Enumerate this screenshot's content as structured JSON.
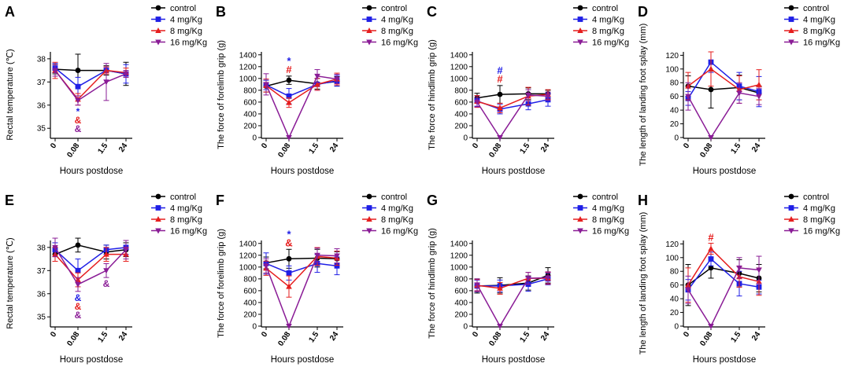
{
  "figure": {
    "x_categories": [
      "0",
      "0.08",
      "1.5",
      "24"
    ],
    "xlabel": "Hours postdose",
    "legend": [
      {
        "name": "control",
        "color": "#000000",
        "marker": "circle"
      },
      {
        "name": "4  mg/Kg",
        "color": "#1f1fe6",
        "marker": "square"
      },
      {
        "name": "8  mg/Kg",
        "color": "#e61e1e",
        "marker": "triangle-up"
      },
      {
        "name": "16 mg/Kg",
        "color": "#8a1c96",
        "marker": "triangle-down"
      }
    ]
  },
  "chart_data": [
    {
      "panel": "A",
      "type": "line",
      "ylabel": "Rectal temperature (℃)",
      "xlabel": "Hours postdose",
      "categories": [
        "0",
        "0.08",
        "1.5",
        "24"
      ],
      "ylim": [
        34.6,
        38.3
      ],
      "yticks": [
        35,
        36,
        37,
        38
      ],
      "series": [
        {
          "name": "control",
          "values": [
            37.55,
            37.5,
            37.5,
            37.35
          ],
          "errors": [
            0.2,
            0.7,
            0.2,
            0.5
          ]
        },
        {
          "name": "4  mg/Kg",
          "values": [
            37.6,
            36.8,
            37.5,
            37.35
          ],
          "errors": [
            0.2,
            0.4,
            0.15,
            0.4
          ]
        },
        {
          "name": "8  mg/Kg",
          "values": [
            37.5,
            36.25,
            37.5,
            37.4
          ],
          "errors": [
            0.35,
            0.25,
            0.15,
            0.2
          ]
        },
        {
          "name": "16 mg/Kg",
          "values": [
            37.5,
            36.2,
            37.0,
            37.35
          ],
          "errors": [
            0.25,
            0.2,
            0.8,
            0.15
          ]
        }
      ],
      "annotations": [
        {
          "x": "0.08",
          "lines": [
            {
              "text": "*",
              "series": "4  mg/Kg"
            },
            {
              "text": "&",
              "series": "8  mg/Kg"
            },
            {
              "text": "&",
              "series": "16 mg/Kg"
            }
          ]
        }
      ]
    },
    {
      "panel": "B",
      "type": "line",
      "ylabel": "The force of forelimb grip (g)",
      "xlabel": "Hours postdose",
      "categories": [
        "0",
        "0.08",
        "1.5",
        "24"
      ],
      "ylim": [
        0,
        1450
      ],
      "yticks": [
        0,
        200,
        400,
        600,
        800,
        1000,
        1200,
        1400
      ],
      "series": [
        {
          "name": "control",
          "values": [
            870,
            970,
            910,
            950
          ],
          "errors": [
            100,
            70,
            90,
            80
          ]
        },
        {
          "name": "4  mg/Kg",
          "values": [
            890,
            700,
            900,
            960
          ],
          "errors": [
            80,
            130,
            100,
            90
          ]
        },
        {
          "name": "8  mg/Kg",
          "values": [
            880,
            590,
            900,
            990
          ],
          "errors": [
            110,
            80,
            100,
            100
          ]
        },
        {
          "name": "16 mg/Kg",
          "values": [
            900,
            0,
            1040,
            990
          ],
          "errors": [
            180,
            0,
            110,
            80
          ]
        }
      ],
      "annotations": [
        {
          "x": "0.08",
          "lines": [
            {
              "text": "*",
              "series": "4  mg/Kg"
            },
            {
              "text": "#",
              "series": "8  mg/Kg"
            }
          ]
        }
      ]
    },
    {
      "panel": "C",
      "type": "line",
      "ylabel": "The force of hindlimb grip (g)",
      "xlabel": "Hours postdose",
      "categories": [
        "0",
        "0.08",
        "1.5",
        "24"
      ],
      "ylim": [
        0,
        1450
      ],
      "yticks": [
        0,
        200,
        400,
        600,
        800,
        1000,
        1200,
        1400
      ],
      "series": [
        {
          "name": "control",
          "values": [
            670,
            730,
            740,
            740
          ],
          "errors": [
            80,
            150,
            100,
            60
          ]
        },
        {
          "name": "4  mg/Kg",
          "values": [
            620,
            480,
            570,
            640
          ],
          "errors": [
            90,
            80,
            100,
            110
          ]
        },
        {
          "name": "8  mg/Kg",
          "values": [
            610,
            500,
            700,
            730
          ],
          "errors": [
            100,
            80,
            150,
            80
          ]
        },
        {
          "name": "16 mg/Kg",
          "values": [
            600,
            0,
            720,
            700
          ],
          "errors": [
            80,
            0,
            90,
            70
          ]
        }
      ],
      "annotations": [
        {
          "x": "0.08",
          "lines": [
            {
              "text": "#",
              "series": "4  mg/Kg"
            },
            {
              "text": "#",
              "series": "8  mg/Kg"
            }
          ]
        }
      ]
    },
    {
      "panel": "D",
      "type": "line",
      "ylabel": "The length of landing foot splay (mm)",
      "xlabel": "Hours postdose",
      "categories": [
        "0",
        "0.08",
        "1.5",
        "24"
      ],
      "ylim": [
        0,
        125
      ],
      "yticks": [
        0,
        20,
        40,
        60,
        80,
        100,
        120
      ],
      "series": [
        {
          "name": "control",
          "values": [
            75,
            70,
            73,
            65
          ],
          "errors": [
            15,
            27,
            18,
            10
          ]
        },
        {
          "name": "4  mg/Kg",
          "values": [
            57,
            110,
            75,
            67
          ],
          "errors": [
            10,
            15,
            20,
            22
          ]
        },
        {
          "name": "8  mg/Kg",
          "values": [
            75,
            100,
            70,
            77
          ],
          "errors": [
            20,
            25,
            20,
            22
          ]
        },
        {
          "name": "16 mg/Kg",
          "values": [
            60,
            0,
            65,
            60
          ],
          "errors": [
            20,
            0,
            15,
            12
          ]
        }
      ],
      "annotations": []
    },
    {
      "panel": "E",
      "type": "line",
      "ylabel": "Rectal temperature (℃)",
      "xlabel": "Hours postdose",
      "categories": [
        "0",
        "0.08",
        "1.5",
        "24"
      ],
      "ylim": [
        34.6,
        38.3
      ],
      "yticks": [
        35,
        36,
        37,
        38
      ],
      "series": [
        {
          "name": "control",
          "values": [
            37.7,
            38.1,
            37.8,
            37.9
          ],
          "errors": [
            0.3,
            0.3,
            0.3,
            0.3
          ]
        },
        {
          "name": "4  mg/Kg",
          "values": [
            37.9,
            37.0,
            37.9,
            38.0
          ],
          "errors": [
            0.3,
            0.5,
            0.2,
            0.3
          ]
        },
        {
          "name": "8  mg/Kg",
          "values": [
            37.7,
            36.6,
            37.7,
            37.7
          ],
          "errors": [
            0.3,
            0.3,
            0.3,
            0.3
          ]
        },
        {
          "name": "16 mg/Kg",
          "values": [
            38.0,
            36.4,
            37.0,
            37.9
          ],
          "errors": [
            0.4,
            0.3,
            0.3,
            0.4
          ]
        }
      ],
      "annotations": [
        {
          "x": "0.08",
          "lines": [
            {
              "text": "&",
              "series": "4  mg/Kg"
            },
            {
              "text": "&",
              "series": "8  mg/Kg"
            },
            {
              "text": "&",
              "series": "16 mg/Kg"
            }
          ]
        },
        {
          "x": "1.5",
          "lines": [
            {
              "text": "&",
              "series": "16 mg/Kg"
            }
          ]
        }
      ]
    },
    {
      "panel": "F",
      "type": "line",
      "ylabel": "The force of forelimb grip (g)",
      "xlabel": "Hours postdose",
      "categories": [
        "0",
        "0.08",
        "1.5",
        "24"
      ],
      "ylim": [
        0,
        1450
      ],
      "yticks": [
        0,
        200,
        400,
        600,
        800,
        1000,
        1200,
        1400
      ],
      "series": [
        {
          "name": "control",
          "values": [
            1070,
            1140,
            1150,
            1140
          ],
          "errors": [
            100,
            160,
            150,
            120
          ]
        },
        {
          "name": "4  mg/Kg",
          "values": [
            1060,
            900,
            1060,
            1020
          ],
          "errors": [
            180,
            120,
            150,
            150
          ]
        },
        {
          "name": "8  mg/Kg",
          "values": [
            980,
            670,
            1180,
            1150
          ],
          "errors": [
            120,
            180,
            150,
            120
          ]
        },
        {
          "name": "16 mg/Kg",
          "values": [
            1020,
            0,
            1200,
            1190
          ],
          "errors": [
            120,
            0,
            120,
            120
          ]
        }
      ],
      "annotations": [
        {
          "x": "0.08",
          "lines": [
            {
              "text": "*",
              "series": "4  mg/Kg"
            },
            {
              "text": "&",
              "series": "8  mg/Kg"
            }
          ]
        }
      ]
    },
    {
      "panel": "G",
      "type": "line",
      "ylabel": "The force of hindlimb grip (g)",
      "xlabel": "Hours postdose",
      "categories": [
        "0",
        "0.08",
        "1.5",
        "24"
      ],
      "ylim": [
        0,
        1450
      ],
      "yticks": [
        0,
        200,
        400,
        600,
        800,
        1000,
        1200,
        1400
      ],
      "series": [
        {
          "name": "control",
          "values": [
            680,
            690,
            730,
            860
          ],
          "errors": [
            120,
            130,
            120,
            130
          ]
        },
        {
          "name": "4  mg/Kg",
          "values": [
            680,
            680,
            710,
            800
          ],
          "errors": [
            100,
            100,
            120,
            100
          ]
        },
        {
          "name": "8  mg/Kg",
          "values": [
            690,
            640,
            810,
            810
          ],
          "errors": [
            100,
            100,
            100,
            100
          ]
        },
        {
          "name": "16 mg/Kg",
          "values": [
            700,
            0,
            810,
            820
          ],
          "errors": [
            100,
            0,
            100,
            100
          ]
        }
      ],
      "annotations": []
    },
    {
      "panel": "H",
      "type": "line",
      "ylabel": "The length of landing foot splay (mm)",
      "xlabel": "Hours postdose",
      "categories": [
        "0",
        "0.08",
        "1.5",
        "24"
      ],
      "ylim": [
        0,
        125
      ],
      "yticks": [
        0,
        20,
        40,
        60,
        80,
        100,
        120
      ],
      "series": [
        {
          "name": "control",
          "values": [
            60,
            85,
            77,
            70
          ],
          "errors": [
            30,
            15,
            20,
            20
          ]
        },
        {
          "name": "4  mg/Kg",
          "values": [
            53,
            98,
            62,
            57
          ],
          "errors": [
            15,
            10,
            18,
            10
          ]
        },
        {
          "name": "8  mg/Kg",
          "values": [
            60,
            113,
            72,
            65
          ],
          "errors": [
            25,
            8,
            15,
            20
          ]
        },
        {
          "name": "16 mg/Kg",
          "values": [
            53,
            0,
            85,
            82
          ],
          "errors": [
            20,
            0,
            15,
            20
          ]
        }
      ],
      "annotations": [
        {
          "x": "0.08",
          "lines": [
            {
              "text": "#",
              "series": "8  mg/Kg"
            }
          ]
        }
      ]
    }
  ]
}
